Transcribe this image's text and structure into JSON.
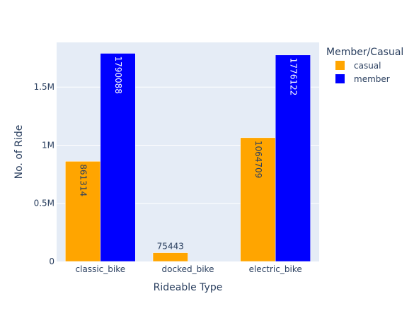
{
  "chart_data": {
    "type": "bar",
    "barmode": "group",
    "xlabel": "Rideable Type",
    "ylabel": "No. of Ride",
    "categories": [
      "classic_bike",
      "docked_bike",
      "electric_bike"
    ],
    "ylim": [
      0,
      1884303
    ],
    "yticks": [
      {
        "value": 0,
        "label": "0"
      },
      {
        "value": 500000,
        "label": "0.5M"
      },
      {
        "value": 1000000,
        "label": "1M"
      },
      {
        "value": 1500000,
        "label": "1.5M"
      }
    ],
    "legend_title": "Member/Casual",
    "legend_position": "top-right",
    "grid": true,
    "series": [
      {
        "name": "casual",
        "color": "#FFA500",
        "values": [
          861314,
          75443,
          1064709
        ]
      },
      {
        "name": "member",
        "color": "#0000FF",
        "values": [
          1790088,
          null,
          1776122
        ]
      }
    ]
  }
}
